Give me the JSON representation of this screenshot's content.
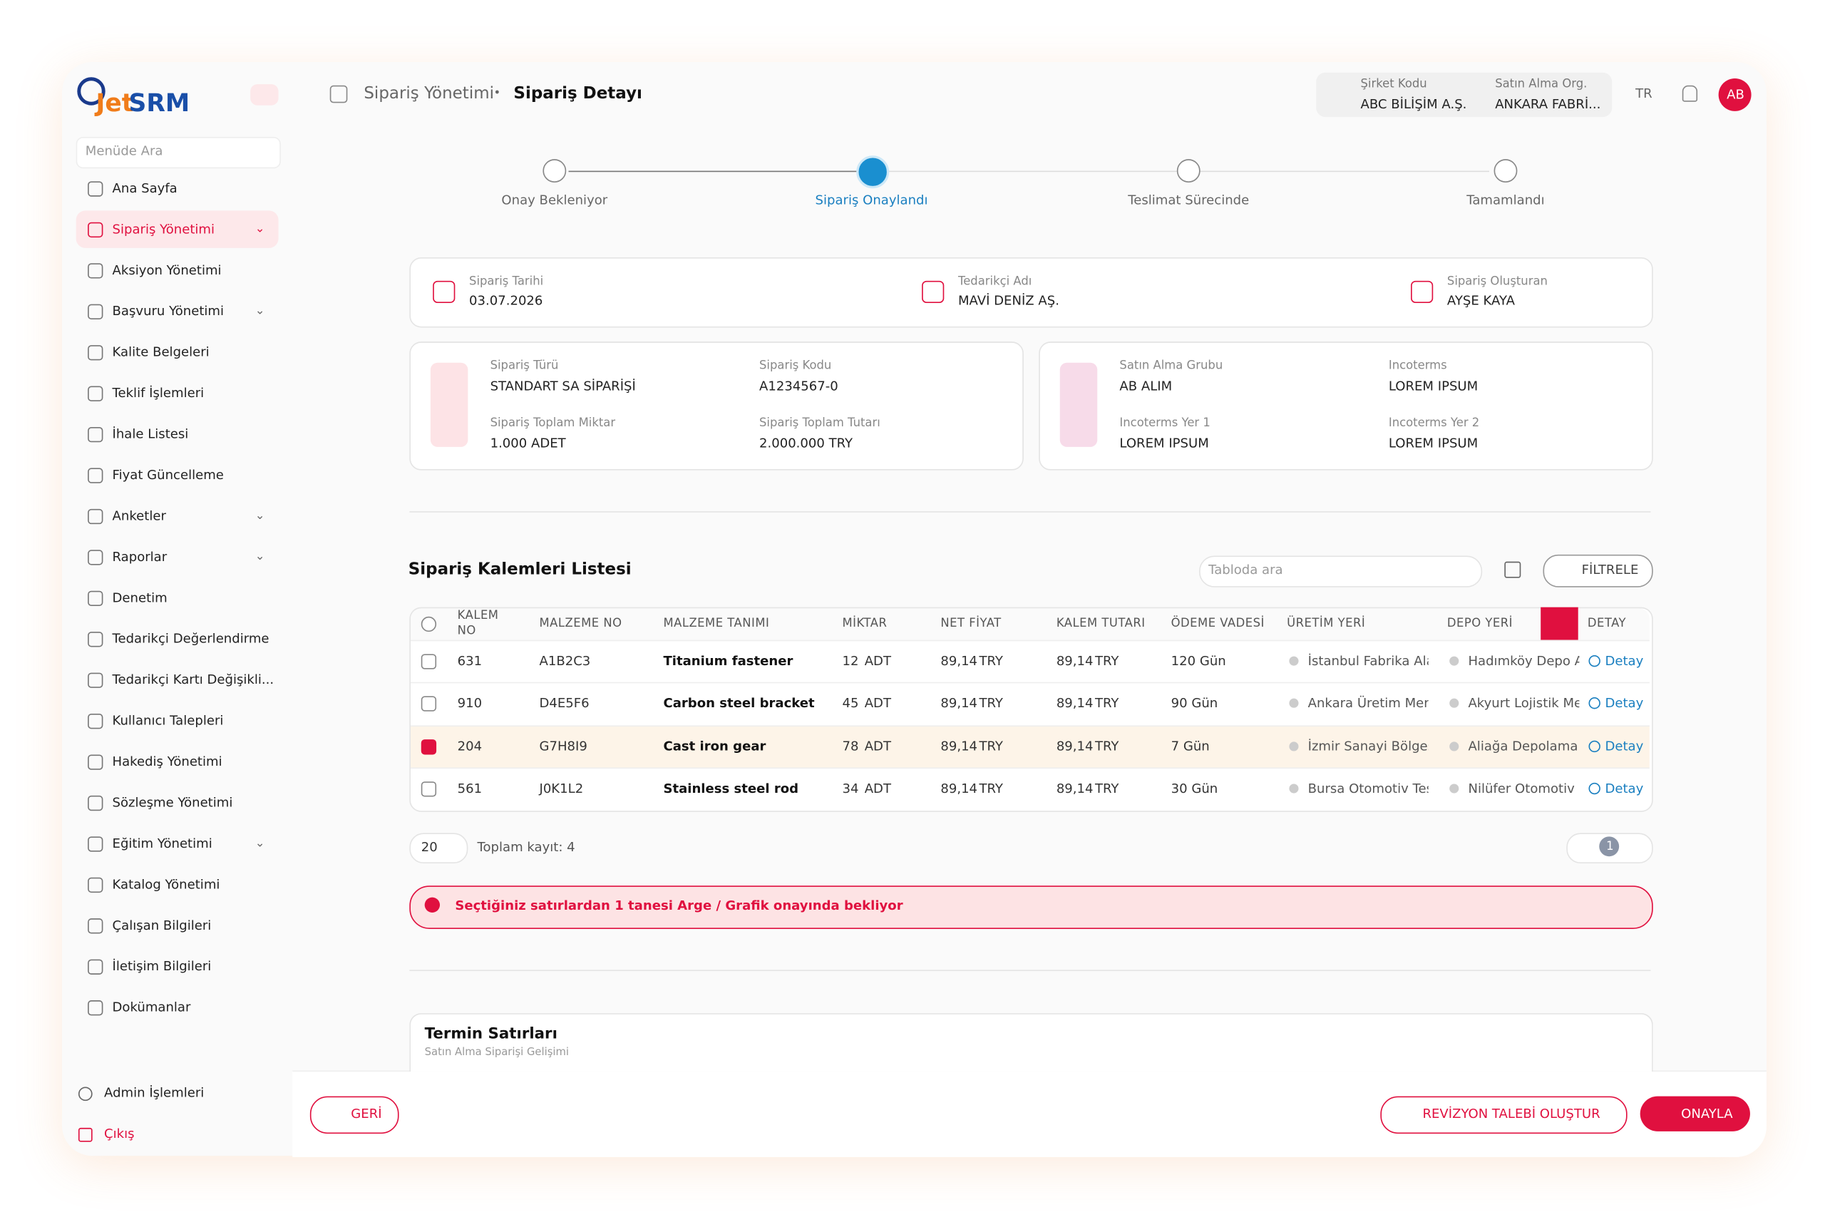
{
  "brand": {
    "logo_a": "Jet",
    "logo_b": "SRM"
  },
  "sidebar": {
    "search_placeholder": "Menüde Ara",
    "items": [
      "Ana Sayfa",
      "Sipariş Yönetimi",
      "Aksiyon Yönetimi",
      "Başvuru Yönetimi",
      "Kalite Belgeleri",
      "Teklif İşlemleri",
      "İhale Listesi",
      "Fiyat Güncelleme",
      "Anketler",
      "Raporlar",
      "Denetim",
      "Tedarikçi Değerlendirme",
      "Tedarikçi Kartı Değişikli...",
      "Kullanıcı Talepleri",
      "Hakediş Yönetimi",
      "Sözleşme Yönetimi",
      "Eğitim Yönetimi",
      "Katalog Yönetimi",
      "Çalışan Bilgileri",
      "İletişim Bilgileri",
      "Dokümanlar"
    ],
    "footer": [
      "Admin İşlemleri",
      "Çıkış"
    ]
  },
  "header": {
    "breadcrumb": [
      "Sipariş Yönetimi",
      "Sipariş Detayı"
    ],
    "company_code_label": "Şirket Kodu",
    "company_code": "ABC BİLİŞİM A.Ş.",
    "org_label": "Satın Alma Org.",
    "org": "ANKARA FABRİ...",
    "lang": "TR",
    "avatar": "AB"
  },
  "steps": [
    "Onay Bekleniyor",
    "Sipariş Onaylandı",
    "Teslimat Sürecinde",
    "Tamamlandı"
  ],
  "summary": [
    {
      "label": "Sipariş Tarihi",
      "value": "03.07.2026"
    },
    {
      "label": "Tedarikçi Adı",
      "value": "MAVİ DENİZ AŞ."
    },
    {
      "label": "Sipariş Oluşturan",
      "value": "AYŞE KAYA"
    }
  ],
  "cards": [
    [
      {
        "label": "Sipariş Türü",
        "value": "STANDART SA SİPARİŞİ"
      },
      {
        "label": "Sipariş Kodu",
        "value": "A1234567-0"
      },
      {
        "label": "Sipariş Toplam Miktar",
        "value": "1.000 ADET"
      },
      {
        "label": "Sipariş Toplam Tutarı",
        "value": "2.000.000 TRY"
      }
    ],
    [
      {
        "label": "Satın Alma Grubu",
        "value": "AB ALIM"
      },
      {
        "label": "Incoterms",
        "value": "LOREM IPSUM"
      },
      {
        "label": "Incoterms Yer 1",
        "value": "LOREM IPSUM"
      },
      {
        "label": "Incoterms Yer 2",
        "value": "LOREM IPSUM"
      }
    ]
  ],
  "table": {
    "title": "Sipariş Kalemleri Listesi",
    "search_placeholder": "Tabloda ara",
    "filter": "FİLTRELE",
    "columns": [
      "KALEM NO",
      "MALZEME NO",
      "MALZEME TANIMI",
      "MİKTAR",
      "NET FİYAT",
      "KALEM TUTARI",
      "ÖDEME VADESİ",
      "ÜRETİM YERİ",
      "DEPO YERİ",
      "DETAY"
    ],
    "rows": [
      [
        "631",
        "A1B2C3",
        "Titanium fastener",
        "12",
        "ADT",
        "89,14",
        "TRY",
        "89,14",
        "TRY",
        "120 Gün",
        "İstanbul Fabrika Alanı",
        "Hadımköy Depo Alanı",
        "Detay"
      ],
      [
        "910",
        "D4E5F6",
        "Carbon steel bracket",
        "45",
        "ADT",
        "89,14",
        "TRY",
        "89,14",
        "TRY",
        "90 Gün",
        "Ankara Üretim Merk...",
        "Akyurt Lojistik Merkezi",
        "Detay"
      ],
      [
        "204",
        "G7H8I9",
        "Cast iron gear",
        "78",
        "ADT",
        "89,14",
        "TRY",
        "89,14",
        "TRY",
        "7 Gün",
        "İzmir Sanayi Bölgesi",
        "Aliağa Depolama Bölgesi",
        "Detay"
      ],
      [
        "561",
        "J0K1L2",
        "Stainless steel rod",
        "34",
        "ADT",
        "89,14",
        "TRY",
        "89,14",
        "TRY",
        "30 Gün",
        "Bursa Otomotiv Tes...",
        "Nilüfer Otomotiv Deposu",
        "Detay"
      ]
    ],
    "checked": [
      false,
      false,
      true,
      false
    ],
    "page_size": "20",
    "total": "Toplam kayıt: 4",
    "page": "1",
    "alert": "Seçtiğiniz satırlardan 1 tanesi Arge / Grafik onayında bekliyor"
  },
  "termin": {
    "title": "Termin Satırları",
    "subtitle": "Satın Alma Siparişi Gelişimi"
  },
  "footer": {
    "back": "GERİ",
    "revision": "REVİZYON TALEBİ OLUŞTUR",
    "approve": "ONAYLA"
  }
}
